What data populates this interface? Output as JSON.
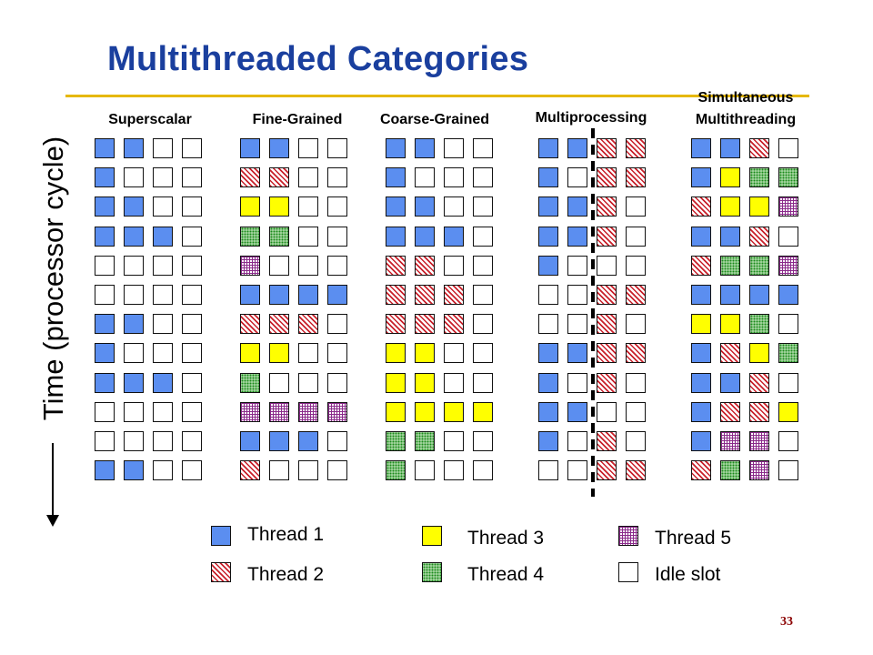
{
  "title": "Multithreaded Categories",
  "y_axis_label": "Time (processor cycle)",
  "page_number": "33",
  "categories": [
    {
      "id": "superscalar",
      "label": "Superscalar",
      "rows": [
        [
          1,
          1,
          0,
          0
        ],
        [
          1,
          0,
          0,
          0
        ],
        [
          1,
          1,
          0,
          0
        ],
        [
          1,
          1,
          1,
          0
        ],
        [
          0,
          0,
          0,
          0
        ],
        [
          0,
          0,
          0,
          0
        ],
        [
          1,
          1,
          0,
          0
        ],
        [
          1,
          0,
          0,
          0
        ],
        [
          1,
          1,
          1,
          0
        ],
        [
          0,
          0,
          0,
          0
        ],
        [
          0,
          0,
          0,
          0
        ],
        [
          1,
          1,
          0,
          0
        ]
      ]
    },
    {
      "id": "fine-grained",
      "label": "Fine-Grained",
      "rows": [
        [
          1,
          1,
          0,
          0
        ],
        [
          2,
          2,
          0,
          0
        ],
        [
          3,
          3,
          0,
          0
        ],
        [
          4,
          4,
          0,
          0
        ],
        [
          5,
          0,
          0,
          0
        ],
        [
          1,
          1,
          1,
          1
        ],
        [
          2,
          2,
          2,
          0
        ],
        [
          3,
          3,
          0,
          0
        ],
        [
          4,
          0,
          0,
          0
        ],
        [
          5,
          5,
          5,
          5
        ],
        [
          1,
          1,
          1,
          0
        ],
        [
          2,
          0,
          0,
          0
        ]
      ]
    },
    {
      "id": "coarse-grained",
      "label": "Coarse-Grained",
      "rows": [
        [
          1,
          1,
          0,
          0
        ],
        [
          1,
          0,
          0,
          0
        ],
        [
          1,
          1,
          0,
          0
        ],
        [
          1,
          1,
          1,
          0
        ],
        [
          2,
          2,
          0,
          0
        ],
        [
          2,
          2,
          2,
          0
        ],
        [
          2,
          2,
          2,
          0
        ],
        [
          3,
          3,
          0,
          0
        ],
        [
          3,
          3,
          0,
          0
        ],
        [
          3,
          3,
          3,
          3
        ],
        [
          4,
          4,
          0,
          0
        ],
        [
          4,
          0,
          0,
          0
        ]
      ]
    },
    {
      "id": "multiprocessing",
      "label": "Multiprocessing",
      "rows": [
        [
          1,
          1,
          2,
          2
        ],
        [
          1,
          0,
          2,
          2
        ],
        [
          1,
          1,
          2,
          0
        ],
        [
          1,
          1,
          2,
          0
        ],
        [
          1,
          0,
          0,
          0
        ],
        [
          0,
          0,
          2,
          2
        ],
        [
          0,
          0,
          2,
          0
        ],
        [
          1,
          1,
          2,
          2
        ],
        [
          1,
          0,
          2,
          0
        ],
        [
          1,
          1,
          0,
          0
        ],
        [
          1,
          0,
          2,
          0
        ],
        [
          0,
          0,
          2,
          2
        ]
      ]
    },
    {
      "id": "smt",
      "label_line1": "Simultaneous",
      "label_line2": "Multithreading",
      "rows": [
        [
          1,
          1,
          2,
          0
        ],
        [
          1,
          3,
          4,
          4
        ],
        [
          2,
          3,
          3,
          5
        ],
        [
          1,
          1,
          2,
          0
        ],
        [
          2,
          4,
          4,
          5
        ],
        [
          1,
          1,
          1,
          1
        ],
        [
          3,
          3,
          4,
          0
        ],
        [
          1,
          2,
          3,
          4
        ],
        [
          1,
          1,
          2,
          0
        ],
        [
          1,
          2,
          2,
          3
        ],
        [
          1,
          5,
          5,
          0
        ],
        [
          2,
          4,
          5,
          0
        ]
      ]
    }
  ],
  "legend": [
    {
      "thread": 1,
      "label": "Thread 1"
    },
    {
      "thread": 2,
      "label": "Thread 2"
    },
    {
      "thread": 3,
      "label": "Thread 3"
    },
    {
      "thread": 4,
      "label": "Thread 4"
    },
    {
      "thread": 5,
      "label": "Thread 5"
    },
    {
      "thread": 0,
      "label": "Idle slot"
    }
  ],
  "colors": {
    "title": "#1a3f9e",
    "rule": "#e6b800",
    "thread1": "#5b8ef0",
    "thread2": "#c8202a",
    "thread3": "#ffff00",
    "thread4": "#1a8a1a",
    "thread5": "#8a2a8a",
    "page_number": "#8b0000"
  }
}
